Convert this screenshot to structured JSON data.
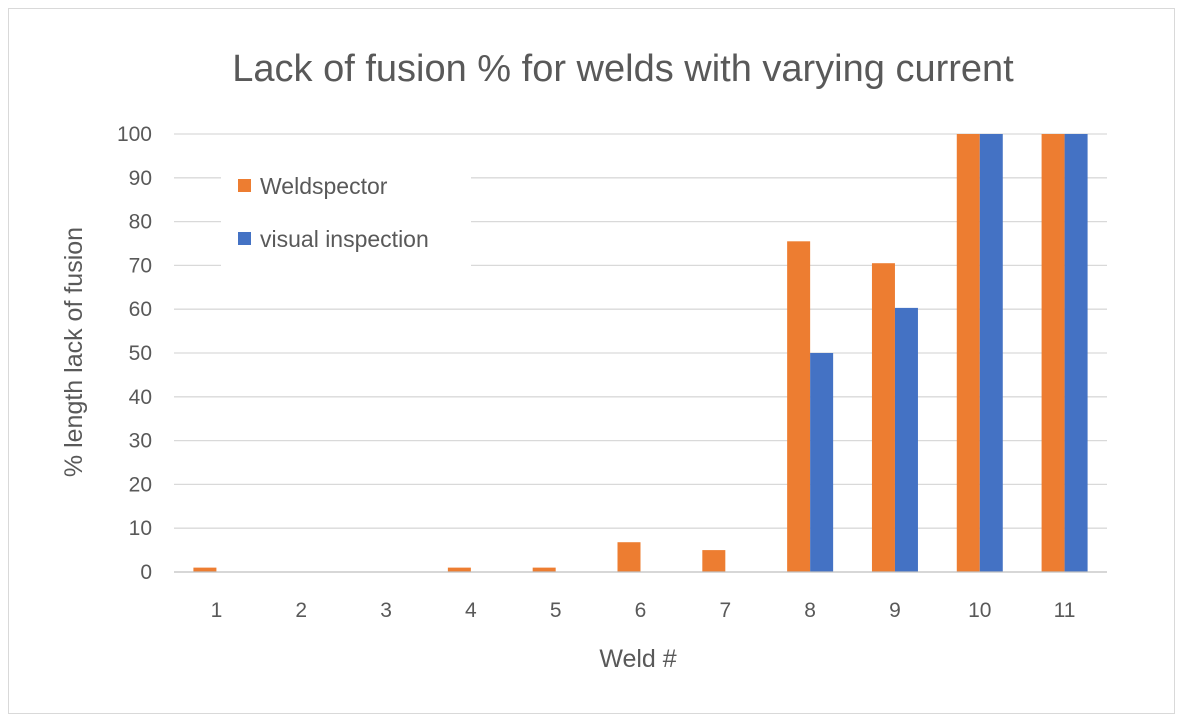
{
  "chart_data": {
    "type": "bar",
    "title": "Lack of fusion % for welds with varying current",
    "xlabel": "Weld #",
    "ylabel": "% length lack of fusion",
    "categories": [
      "1",
      "2",
      "3",
      "4",
      "5",
      "6",
      "7",
      "8",
      "9",
      "10",
      "11"
    ],
    "series": [
      {
        "name": "Weldspector",
        "color": "#ed7d31",
        "values": [
          1,
          0,
          0,
          1,
          1,
          6.8,
          5,
          75.5,
          70.5,
          100,
          100
        ]
      },
      {
        "name": "visual inspection",
        "color": "#4472c4",
        "values": [
          0,
          0,
          0,
          0,
          0,
          0,
          0,
          50,
          60.3,
          100,
          100
        ]
      }
    ],
    "ylim": [
      0,
      100
    ],
    "yticks": [
      0,
      10,
      20,
      30,
      40,
      50,
      60,
      70,
      80,
      90,
      100
    ],
    "grid": true,
    "legend_position": "top-left"
  }
}
